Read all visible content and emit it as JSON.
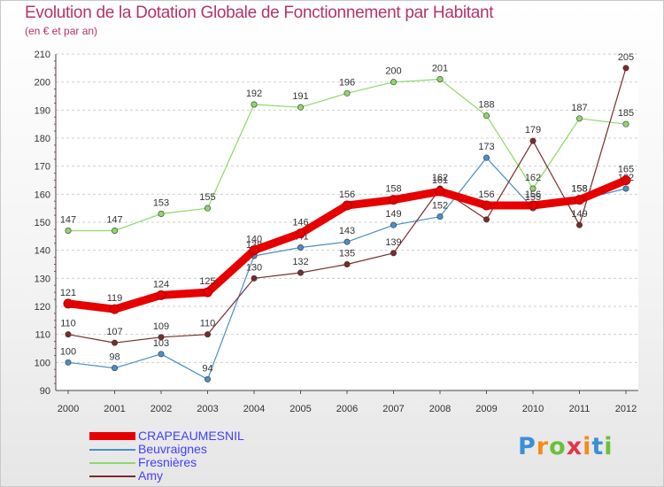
{
  "title": "Evolution de la Dotation Globale de Fonctionnement par Habitant",
  "subtitle": "(en € et par an)",
  "logo": {
    "text": "Proxiti",
    "letters": [
      "P",
      "r",
      "o",
      "x",
      "i",
      "t",
      "i"
    ],
    "letter_colors": [
      "#3b8fd8",
      "#f28c1c",
      "#6dbf3a",
      "#e0364b",
      "#f28c1c",
      "#3b8fd8",
      "#6dbf3a"
    ]
  },
  "chart_data": {
    "type": "line",
    "x": [
      "2000",
      "2001",
      "2002",
      "2003",
      "2004",
      "2005",
      "2006",
      "2007",
      "2008",
      "2009",
      "2010",
      "2011",
      "2012"
    ],
    "ylim": [
      90,
      210
    ],
    "y_ticks": [
      90,
      100,
      110,
      120,
      130,
      140,
      150,
      160,
      170,
      180,
      190,
      200,
      210
    ],
    "grid": "horizontal dashed",
    "legend_position": "bottom-left",
    "series": [
      {
        "name": "Beuvraignes",
        "color": "#4a8fc9",
        "values": [
          100,
          98,
          103,
          94,
          138,
          141,
          143,
          149,
          152,
          173,
          155,
          158,
          162
        ],
        "labels": [
          "100",
          "98",
          "103",
          "94",
          "138",
          "141",
          "143",
          "149",
          "152",
          "173",
          "155",
          "158",
          "162"
        ]
      },
      {
        "name": "Fresnières",
        "color": "#8ed86a",
        "values": [
          147,
          147,
          153,
          155,
          192,
          191,
          196,
          200,
          201,
          188,
          162,
          187,
          185
        ],
        "labels": [
          "147",
          "147",
          "153",
          "155",
          "192",
          "191",
          "196",
          "200",
          "201",
          "188",
          "162",
          "187",
          "185"
        ]
      },
      {
        "name": "Amy",
        "color": "#7a2b2b",
        "values": [
          110,
          107,
          109,
          110,
          130,
          132,
          135,
          139,
          162,
          151,
          179,
          149,
          205
        ],
        "labels": [
          "110",
          "107",
          "109",
          "110",
          "130",
          "132",
          "135",
          "139",
          "162",
          "",
          "179",
          "149",
          "205"
        ]
      },
      {
        "name": "CRAPEAUMESNIL",
        "color": "#e60000",
        "values": [
          121,
          119,
          124,
          125,
          140,
          146,
          156,
          158,
          161,
          156,
          156,
          158,
          165
        ],
        "labels": [
          "121",
          "119",
          "124",
          "125",
          "140",
          "146",
          "156",
          "158",
          "161",
          "156",
          "156",
          "158",
          "165"
        ]
      }
    ],
    "legend": [
      {
        "name": "CRAPEAUMESNIL",
        "color": "#e60000",
        "weight": "thick"
      },
      {
        "name": "Beuvraignes",
        "color": "#4a8fc9",
        "weight": "thin"
      },
      {
        "name": "Fresnières",
        "color": "#8ed86a",
        "weight": "thin"
      },
      {
        "name": "Amy",
        "color": "#7a2b2b",
        "weight": "thin"
      }
    ]
  }
}
